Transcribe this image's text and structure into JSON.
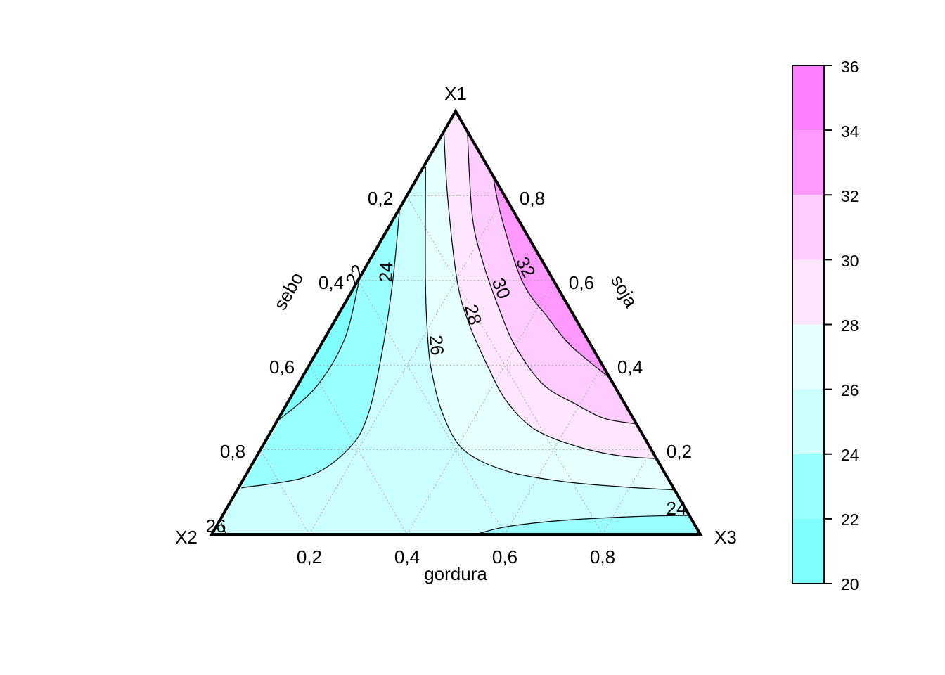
{
  "chart_data": {
    "type": "ternary-contour",
    "vertices": {
      "top": "X1",
      "left": "X2",
      "right": "X3"
    },
    "axis_titles": {
      "bottom": "gordura",
      "left": "sebo",
      "right": "soja"
    },
    "ticks": {
      "bottom": [
        "0,2",
        "0,4",
        "0,6",
        "0,8"
      ],
      "left": [
        "0,2",
        "0,4",
        "0,6",
        "0,8"
      ],
      "right": [
        "0,8",
        "0,6",
        "0,4",
        "0,2"
      ]
    },
    "grid": true,
    "coordinate_note": "points given as [X1, X3]; X2 = 1 - X1 - X3",
    "contours": [
      {
        "level": 22,
        "label": "22",
        "points": [
          [
            0.595,
            0.004
          ],
          [
            0.46,
            0.042
          ],
          [
            0.349,
            0.04
          ],
          [
            0.271,
            0.003
          ]
        ]
      },
      {
        "level": 24,
        "label": "24",
        "points": [
          [
            0.764,
            0.003
          ],
          [
            0.593,
            0.074
          ],
          [
            0.427,
            0.135
          ],
          [
            0.282,
            0.179
          ],
          [
            0.204,
            0.18
          ],
          [
            0.138,
            0.131
          ],
          [
            0.11,
            0.006
          ]
        ]
      },
      {
        "level": 26,
        "label": "26",
        "points": [
          [
            0.869,
            0.004
          ],
          [
            0.598,
            0.139
          ],
          [
            0.465,
            0.21
          ],
          [
            0.382,
            0.26
          ],
          [
            0.282,
            0.333
          ],
          [
            0.199,
            0.417
          ],
          [
            0.15,
            0.528
          ],
          [
            0.125,
            0.656
          ],
          [
            0.113,
            0.777
          ],
          [
            0.105,
            0.895
          ]
        ]
      },
      {
        "level": 28,
        "label": "28",
        "points": [
          [
            0.952,
            0.0
          ],
          [
            0.797,
            0.085
          ],
          [
            0.598,
            0.204
          ],
          [
            0.498,
            0.278
          ],
          [
            0.399,
            0.365
          ],
          [
            0.316,
            0.445
          ],
          [
            0.249,
            0.536
          ],
          [
            0.208,
            0.643
          ],
          [
            0.186,
            0.74
          ],
          [
            0.179,
            0.821
          ]
        ]
      },
      {
        "level": 30,
        "label": "30",
        "points": [
          [
            0.952,
            0.048
          ],
          [
            0.752,
            0.158
          ],
          [
            0.643,
            0.234
          ],
          [
            0.532,
            0.323
          ],
          [
            0.444,
            0.4
          ],
          [
            0.354,
            0.502
          ],
          [
            0.307,
            0.593
          ],
          [
            0.274,
            0.667
          ],
          [
            0.261,
            0.739
          ]
        ]
      },
      {
        "level": 32,
        "label": "32",
        "points": [
          [
            0.847,
            0.153
          ],
          [
            0.752,
            0.217
          ],
          [
            0.598,
            0.337
          ],
          [
            0.51,
            0.435
          ],
          [
            0.444,
            0.515
          ],
          [
            0.369,
            0.631
          ]
        ]
      },
      {
        "level": 24,
        "label": "24",
        "points": [
          [
            0.0,
            0.541
          ],
          [
            0.018,
            0.594
          ],
          [
            0.033,
            0.701
          ],
          [
            0.042,
            0.841
          ],
          [
            0.045,
            0.955
          ]
        ]
      },
      {
        "level": 26,
        "label": "26",
        "points": [
          [
            0.035,
            0.0
          ],
          [
            0.02,
            0.012
          ],
          [
            0.0,
            0.03
          ]
        ]
      }
    ],
    "regions": [
      {
        "band": "24-26",
        "color": "#CCFFFF",
        "base": true
      },
      {
        "band": "26-28",
        "color": "#E6FFFF",
        "contour": 2,
        "close_via": "X1"
      },
      {
        "band": "28-30",
        "color": "#FFE6FF",
        "contour": 3,
        "close_via": "X1"
      },
      {
        "band": "30-32",
        "color": "#FFCCFF",
        "contour": 4,
        "close_via": ""
      },
      {
        "band": "32-34",
        "color": "#FF99FF",
        "contour": 5,
        "close_via": ""
      },
      {
        "band": "22-24",
        "color": "#99FFFF",
        "contour": 1,
        "close_via": ""
      },
      {
        "band": "20-22",
        "color": "#80FFFF",
        "contour": 0,
        "close_via": ""
      },
      {
        "band": "22-24",
        "color": "#99FFFF",
        "contour": 6,
        "close_via": "X3"
      }
    ],
    "legend": {
      "ticks": [
        "20",
        "22",
        "24",
        "26",
        "28",
        "30",
        "32",
        "34",
        "36"
      ],
      "range": [
        20,
        36
      ],
      "bands": [
        {
          "from": 20,
          "to": 22,
          "color": "#80FFFF"
        },
        {
          "from": 22,
          "to": 24,
          "color": "#99FFFF"
        },
        {
          "from": 24,
          "to": 26,
          "color": "#CCFFFF"
        },
        {
          "from": 26,
          "to": 28,
          "color": "#E6FFFF"
        },
        {
          "from": 28,
          "to": 30,
          "color": "#FFE6FF"
        },
        {
          "from": 30,
          "to": 32,
          "color": "#FFCCFF"
        },
        {
          "from": 32,
          "to": 34,
          "color": "#FF99FF"
        },
        {
          "from": 34,
          "to": 36,
          "color": "#FF80FF"
        }
      ],
      "placement": "right"
    }
  }
}
